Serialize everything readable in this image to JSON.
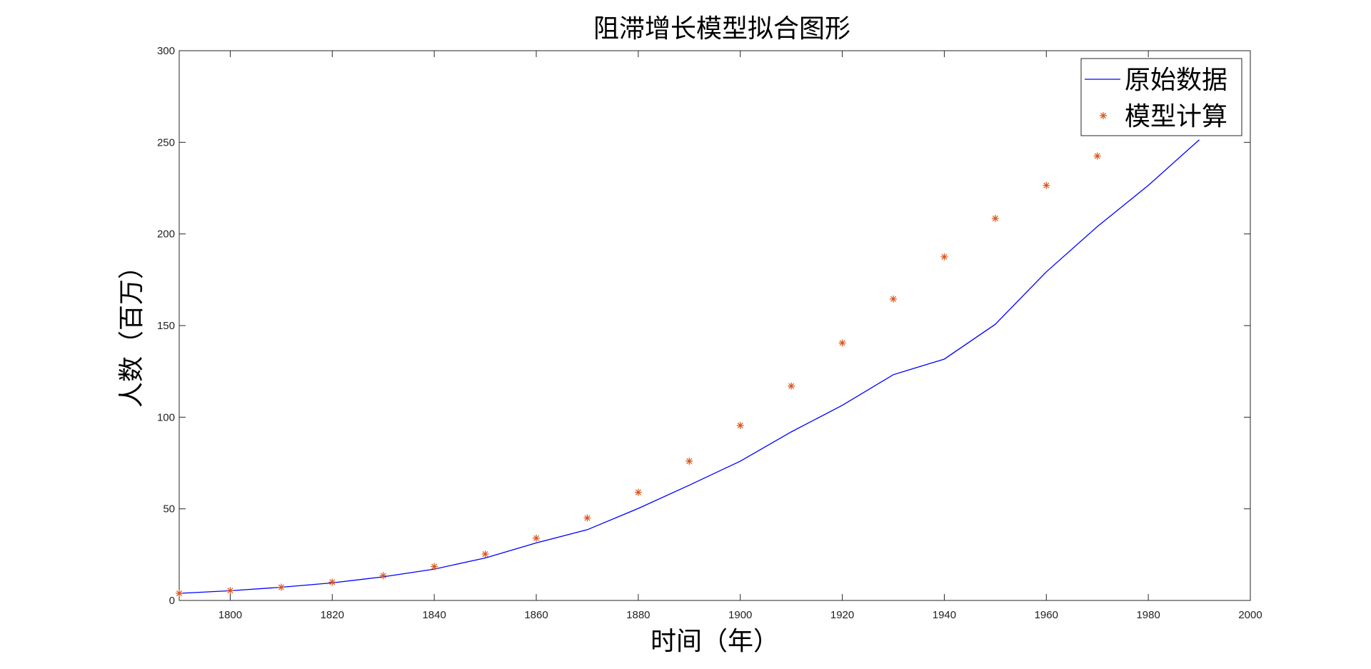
{
  "chart_data": {
    "type": "line",
    "title": "阻滞增长模型拟合图形",
    "xlabel": "时间（年）",
    "ylabel": "人数（百万）",
    "xlim": [
      1790,
      2000
    ],
    "ylim": [
      0,
      300
    ],
    "x_ticks": [
      1800,
      1820,
      1840,
      1860,
      1880,
      1900,
      1920,
      1940,
      1960,
      1980,
      2000
    ],
    "y_ticks": [
      0,
      50,
      100,
      150,
      200,
      250,
      300
    ],
    "grid": false,
    "legend_location": "top-right",
    "series": [
      {
        "name": "原始数据",
        "style": "line",
        "color": "#0000ff",
        "x": [
          1790,
          1800,
          1810,
          1820,
          1830,
          1840,
          1850,
          1860,
          1870,
          1880,
          1890,
          1900,
          1910,
          1920,
          1930,
          1940,
          1950,
          1960,
          1970,
          1980,
          1990
        ],
        "y": [
          3.9,
          5.3,
          7.2,
          9.6,
          12.9,
          17.1,
          23.2,
          31.4,
          38.6,
          50.2,
          62.9,
          76.0,
          92.0,
          106.5,
          123.2,
          131.7,
          150.7,
          179.3,
          204.0,
          226.5,
          251.4
        ]
      },
      {
        "name": "模型计算",
        "style": "marker",
        "marker": "*",
        "color": "#d95319",
        "x": [
          1790,
          1800,
          1810,
          1820,
          1830,
          1840,
          1850,
          1860,
          1870,
          1880,
          1890,
          1900,
          1910,
          1920,
          1930,
          1940,
          1950,
          1960,
          1970
        ],
        "y": [
          3.9,
          5.4,
          7.2,
          10.0,
          13.5,
          18.5,
          25.3,
          34.0,
          45.0,
          59.0,
          76.0,
          95.5,
          117.0,
          140.5,
          164.5,
          187.5,
          208.5,
          226.5,
          242.5
        ]
      }
    ]
  }
}
